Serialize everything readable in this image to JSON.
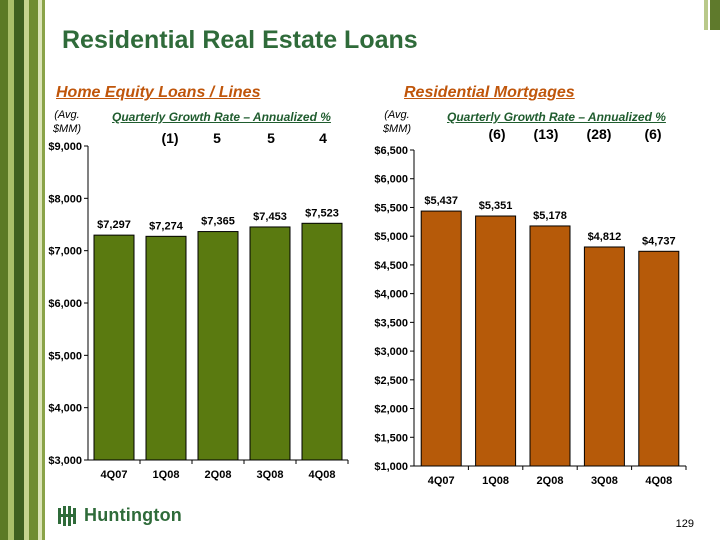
{
  "title": "Residential Real Estate Loans",
  "page_number": "129",
  "brand": "Huntington",
  "colors": {
    "title": "#2f6b3a",
    "subtitle": "#c0560b",
    "green_bar": "#5a7a10",
    "orange_bar": "#b65a09"
  },
  "left_panel": {
    "subtitle": "Home Equity Loans / Lines",
    "unit_line1": "(Avg.",
    "unit_line2": "$MM)",
    "growth_label": "Quarterly Growth Rate – Annualized %",
    "growth_values": [
      "(1)",
      "5",
      "5",
      "4"
    ]
  },
  "right_panel": {
    "subtitle": "Residential Mortgages",
    "unit_line1": "(Avg.",
    "unit_line2": "$MM)",
    "growth_label": "Quarterly Growth Rate – Annualized  %",
    "growth_values": [
      "(6)",
      "(13)",
      "(28)",
      "(6)"
    ]
  },
  "chart_data": [
    {
      "type": "bar",
      "title": "Home Equity Loans / Lines",
      "categories": [
        "4Q07",
        "1Q08",
        "2Q08",
        "3Q08",
        "4Q08"
      ],
      "values": [
        7297,
        7274,
        7365,
        7453,
        7523
      ],
      "value_labels": [
        "$7,297",
        "$7,274",
        "$7,365",
        "$7,453",
        "$7,523"
      ],
      "ylim": [
        3000,
        9000
      ],
      "yticks": [
        3000,
        4000,
        5000,
        6000,
        7000,
        8000,
        9000
      ],
      "ytick_labels": [
        "$3,000",
        "$4,000",
        "$5,000",
        "$6,000",
        "$7,000",
        "$8,000",
        "$9,000"
      ],
      "ylabel": "(Avg. $MM)",
      "bar_color": "#5a7a10",
      "grid": false
    },
    {
      "type": "bar",
      "title": "Residential Mortgages",
      "categories": [
        "4Q07",
        "1Q08",
        "2Q08",
        "3Q08",
        "4Q08"
      ],
      "values": [
        5437,
        5351,
        5178,
        4812,
        4737
      ],
      "value_labels": [
        "$5,437",
        "$5,351",
        "$5,178",
        "$4,812",
        "$4,737"
      ],
      "ylim": [
        1000,
        6500
      ],
      "yticks": [
        1000,
        1500,
        2000,
        2500,
        3000,
        3500,
        4000,
        4500,
        5000,
        5500,
        6000,
        6500
      ],
      "ytick_labels": [
        "$1,000",
        "$1,500",
        "$2,000",
        "$2,500",
        "$3,000",
        "$3,500",
        "$4,000",
        "$4,500",
        "$5,000",
        "$5,500",
        "$6,000",
        "$6,500"
      ],
      "ylabel": "(Avg. $MM)",
      "bar_color": "#b65a09",
      "grid": false
    }
  ]
}
